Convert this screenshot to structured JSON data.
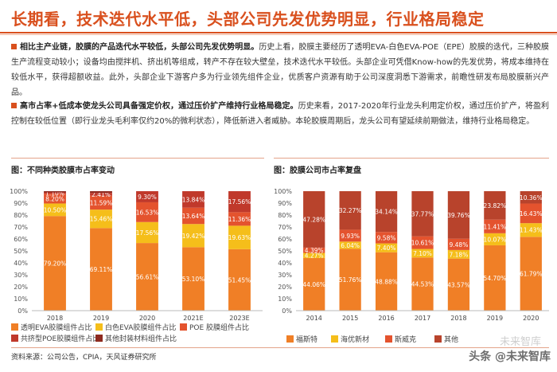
{
  "header": {
    "title": "长期看，技术迭代水平低，头部公司先发优势明显，行业格局稳定"
  },
  "paragraphs": [
    {
      "lead": "相比主产业链，胶膜的产品迭代水平较低，头部公司先发优势明显。",
      "body": "历史上看，胶膜主要经历了透明EVA-白色EVA-POE（EPE）胶膜的迭代，三种胶膜生产流程变动较小；设备均由搅拌机、挤出机等组成，转产不存在较大壁垒，技术迭代水平较低。头部企业可凭借Know-how的先发优势，将成本维持在较低水平，获得超额收益。此外，头部企业下游客户多为行业领先组件企业，优质客户资源有助于公司深度洞悉下游需求，前瞻性研发布局胶膜新兴产品。"
    },
    {
      "lead": "高市占率+低成本使龙头公司具备强定价权，通过压价扩产维持行业格局稳定。",
      "body": "历史来看，2017-2020年行业龙头利用定价权，通过压价扩产，将盈利控制在较低位置（即行业龙头毛利率仅约20%的微利状态），降低新进入者威胁。本轮胶膜周期后，龙头公司有望延续前期做法，维持行业格局稳定。"
    }
  ],
  "figures": {
    "left_title": "图：不同种类胶膜市占率变动",
    "right_title": "图：胶膜公司市占率复盘"
  },
  "chart_data": [
    {
      "type": "bar",
      "stacked": true,
      "title": "图：不同种类胶膜市占率变动",
      "categories": [
        "2018",
        "2019",
        "2020",
        "2021E",
        "2023E"
      ],
      "y_ticks": [
        "0%",
        "10%",
        "20%",
        "30%",
        "40%",
        "50%",
        "60%",
        "70%",
        "80%",
        "90%",
        "100%"
      ],
      "ylim": [
        0,
        100
      ],
      "series": [
        {
          "name": "透明EVA胶膜组件占比",
          "color": "#f07f26",
          "values": [
            79.2,
            69.11,
            56.61,
            53.1,
            51.45
          ],
          "labels": [
            "79.20%",
            "69.11%",
            "56.61%",
            "53.10%",
            "51.45%"
          ]
        },
        {
          "name": "白色EVA胶膜组件占比",
          "color": "#f5be1a",
          "values": [
            10.5,
            15.46,
            17.56,
            19.42,
            19.63
          ],
          "labels": [
            "10.50%",
            "15.46%",
            "17.56%",
            "19.42%",
            "19.63%"
          ]
        },
        {
          "name": "POE 胶膜组件占比",
          "color": "#e4532e",
          "values": [
            8.2,
            11.59,
            16.53,
            13.64,
            11.36
          ],
          "labels": [
            "8.20%",
            "11.59%",
            "16.53%",
            "13.64%",
            "11.36%"
          ]
        },
        {
          "name": "共挤型POE胶膜组件占比",
          "color": "#c0392b",
          "values": [
            1.1,
            2.41,
            9.3,
            13.84,
            17.56
          ],
          "labels": [
            "1.10%",
            "2.41%",
            "9.30%",
            "13.84%",
            "17.56%"
          ]
        },
        {
          "name": "其他封装材料组件占比",
          "color": "#8e2a1f",
          "values": [
            1.0,
            1.43,
            0.0,
            0.0,
            0.0
          ],
          "labels": [
            "",
            "",
            "",
            "",
            ""
          ]
        }
      ],
      "legend_position": "bottom"
    },
    {
      "type": "bar",
      "stacked": true,
      "title": "图：胶膜公司市占率复盘",
      "categories": [
        "2014",
        "2015",
        "2016",
        "2017",
        "2018",
        "2019",
        "2020"
      ],
      "y_ticks": [
        "0%",
        "10%",
        "20%",
        "30%",
        "40%",
        "50%",
        "60%",
        "70%",
        "80%",
        "90%",
        "100%"
      ],
      "ylim": [
        0,
        100
      ],
      "series": [
        {
          "name": "福斯特",
          "color": "#f07f26",
          "values": [
            44.06,
            51.76,
            48.88,
            44.53,
            43.57,
            54.7,
            61.79
          ],
          "labels": [
            "44.06%",
            "51.76%",
            "48.88%",
            "44.53%",
            "43.57%",
            "54.70%",
            "61.79%"
          ]
        },
        {
          "name": "海优新材",
          "color": "#f5be1a",
          "values": [
            4.27,
            6.04,
            7.4,
            7.1,
            7.18,
            10.07,
            11.43
          ],
          "labels": [
            "4.27%",
            "6.04%",
            "7.40%",
            "7.10%",
            "7.18%",
            "10.07%",
            "11.43%"
          ]
        },
        {
          "name": "斯威克",
          "color": "#e4532e",
          "values": [
            4.39,
            9.93,
            9.58,
            10.61,
            9.48,
            11.41,
            16.43
          ],
          "labels": [
            "4.39%",
            "9.93%",
            "9.58%",
            "10.61%",
            "9.48%",
            "11.41%",
            "16.43%"
          ]
        },
        {
          "name": "其他",
          "color": "#b8432c",
          "values": [
            47.28,
            32.27,
            34.14,
            37.77,
            39.76,
            23.82,
            10.36
          ],
          "labels": [
            "47.28%",
            "32.27%",
            "34.14%",
            "37.77%",
            "39.76%",
            "23.82%",
            "10.36%"
          ]
        }
      ],
      "legend_position": "bottom"
    }
  ],
  "footer": {
    "source": "资料来源：公司公告，CPIA，天风证券研究所",
    "watermark": "头条 @未来智库",
    "watermark_back": "未来智库"
  }
}
